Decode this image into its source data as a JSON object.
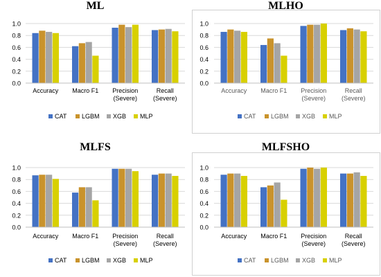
{
  "colors": {
    "CAT": "#4472C4",
    "LGBM": "#C9932C",
    "XGB": "#A5A5A5",
    "MLP": "#D8D000",
    "grid": "#d9d9d9"
  },
  "chart_data": [
    {
      "type": "bar",
      "title": "ML",
      "categories": [
        "Accuracy",
        "Macro F1",
        "Precision (Severe)",
        "Recall (Severe)"
      ],
      "category_lines": [
        [
          "Accuracy"
        ],
        [
          "Macro F1"
        ],
        [
          "Precision",
          "(Severe)"
        ],
        [
          "Recall",
          "(Severe)"
        ]
      ],
      "yticks": [
        "0.0",
        "0.2",
        "0.4",
        "0.6",
        "0.8",
        "1.0"
      ],
      "ylim": [
        0,
        1.0
      ],
      "grid": true,
      "legend_position": "bottom",
      "series": [
        {
          "name": "CAT",
          "color_key": "CAT",
          "values": [
            0.84,
            0.62,
            0.93,
            0.89
          ]
        },
        {
          "name": "LGBM",
          "color_key": "LGBM",
          "values": [
            0.88,
            0.67,
            0.98,
            0.9
          ]
        },
        {
          "name": "XGB",
          "color_key": "XGB",
          "values": [
            0.86,
            0.69,
            0.94,
            0.91
          ]
        },
        {
          "name": "MLP",
          "color_key": "MLP",
          "values": [
            0.84,
            0.46,
            0.98,
            0.87
          ]
        }
      ]
    },
    {
      "type": "bar",
      "title": "MLHO",
      "categories": [
        "Accuracy",
        "Macro F1",
        "Precision (Severe)",
        "Recall (Severe)"
      ],
      "category_lines": [
        [
          "Accuracy"
        ],
        [
          "Macro F1"
        ],
        [
          "Precision",
          "(Severe)"
        ],
        [
          "Recall",
          "(Severe)"
        ]
      ],
      "yticks": [
        "0.0",
        "0.2",
        "0.4",
        "0.6",
        "0.8",
        "1.0"
      ],
      "ylim": [
        0,
        1.0
      ],
      "grid": true,
      "legend_position": "bottom",
      "series": [
        {
          "name": "CAT",
          "color_key": "CAT",
          "values": [
            0.86,
            0.64,
            0.96,
            0.89
          ]
        },
        {
          "name": "LGBM",
          "color_key": "LGBM",
          "values": [
            0.9,
            0.75,
            0.98,
            0.92
          ]
        },
        {
          "name": "XGB",
          "color_key": "XGB",
          "values": [
            0.88,
            0.67,
            0.98,
            0.9
          ]
        },
        {
          "name": "MLP",
          "color_key": "MLP",
          "values": [
            0.86,
            0.46,
            1.0,
            0.87
          ]
        }
      ]
    },
    {
      "type": "bar",
      "title": "MLFS",
      "categories": [
        "Accuracy",
        "Macro F1",
        "Precision (Severe)",
        "Recall (Severe)"
      ],
      "category_lines": [
        [
          "Accuracy"
        ],
        [
          "Macro F1"
        ],
        [
          "Precision",
          "(Severe)"
        ],
        [
          "Recall",
          "(Severe)"
        ]
      ],
      "yticks": [
        "0.0",
        "0.2",
        "0.4",
        "0.6",
        "0.8",
        "1.0"
      ],
      "ylim": [
        0,
        1.0
      ],
      "grid": true,
      "legend_position": "bottom",
      "series": [
        {
          "name": "CAT",
          "color_key": "CAT",
          "values": [
            0.87,
            0.58,
            0.98,
            0.88
          ]
        },
        {
          "name": "LGBM",
          "color_key": "LGBM",
          "values": [
            0.88,
            0.67,
            0.98,
            0.9
          ]
        },
        {
          "name": "XGB",
          "color_key": "XGB",
          "values": [
            0.88,
            0.67,
            0.98,
            0.9
          ]
        },
        {
          "name": "MLP",
          "color_key": "MLP",
          "values": [
            0.81,
            0.45,
            0.94,
            0.86
          ]
        }
      ]
    },
    {
      "type": "bar",
      "title": "MLFSHO",
      "categories": [
        "Accuracy",
        "Macro F1",
        "Precision (Severe)",
        "Recall (Severe)"
      ],
      "category_lines": [
        [
          "Accuracy"
        ],
        [
          "Macro F1"
        ],
        [
          "Precision",
          "(Severe)"
        ],
        [
          "Recall",
          "(Severe)"
        ]
      ],
      "yticks": [
        "0.0",
        "0.2",
        "0.4",
        "0.6",
        "0.8",
        "1.0"
      ],
      "ylim": [
        0,
        1.0
      ],
      "grid": true,
      "legend_position": "bottom",
      "series": [
        {
          "name": "CAT",
          "color_key": "CAT",
          "values": [
            0.88,
            0.67,
            0.98,
            0.9
          ]
        },
        {
          "name": "LGBM",
          "color_key": "LGBM",
          "values": [
            0.9,
            0.7,
            1.0,
            0.9
          ]
        },
        {
          "name": "XGB",
          "color_key": "XGB",
          "values": [
            0.9,
            0.75,
            0.98,
            0.92
          ]
        },
        {
          "name": "MLP",
          "color_key": "MLP",
          "values": [
            0.86,
            0.46,
            1.0,
            0.86
          ]
        }
      ]
    }
  ]
}
